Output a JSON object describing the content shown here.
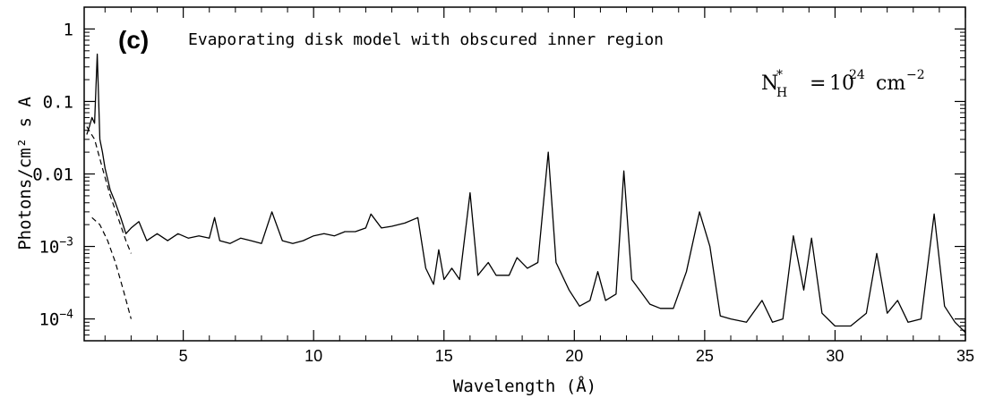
{
  "chart_data": {
    "type": "line",
    "panel_label": "(c)",
    "title": "Evaporating disk model with obscured inner region",
    "annotation": {
      "symbol": "N",
      "superscript": "*",
      "subscript": "H",
      "equals": "=",
      "base": "10",
      "exponent": "24",
      "unit": "cm",
      "unit_exponent": "−2"
    },
    "xlabel": "Wavelength (Å)",
    "ylabel": "Photons/cm² s A",
    "xlim": [
      1.2,
      35
    ],
    "ylim": [
      5e-05,
      2
    ],
    "yscale": "log",
    "grid": false,
    "x_ticks": [
      5,
      10,
      15,
      20,
      25,
      30,
      35
    ],
    "x_tick_labels": [
      "5",
      "10",
      "15",
      "20",
      "25",
      "30",
      "35"
    ],
    "y_ticks": [
      {
        "value": 1,
        "label": "1"
      },
      {
        "value": 0.1,
        "label": "0.1"
      },
      {
        "value": 0.01,
        "label": "0.01"
      },
      {
        "value": 0.001,
        "base": "10",
        "exp": "−3"
      },
      {
        "value": 0.0001,
        "base": "10",
        "exp": "−4"
      }
    ],
    "series": [
      {
        "style": "solid",
        "color": "#000000",
        "x": [
          1.3,
          1.4,
          1.5,
          1.6,
          1.7,
          1.8,
          1.9,
          2.0,
          2.2,
          2.4,
          2.6,
          2.8,
          3.0,
          3.3,
          3.6,
          4.0,
          4.4,
          4.8,
          5.2,
          5.6,
          6.0,
          6.2,
          6.4,
          6.8,
          7.2,
          7.6,
          8.0,
          8.4,
          8.8,
          9.2,
          9.6,
          10.0,
          10.4,
          10.8,
          11.2,
          11.6,
          12.0,
          12.2,
          12.6,
          13.0,
          13.5,
          14.0,
          14.3,
          14.6,
          14.8,
          15.0,
          15.3,
          15.6,
          16.0,
          16.3,
          16.7,
          17.0,
          17.5,
          17.8,
          18.2,
          18.6,
          19.0,
          19.3,
          19.8,
          20.2,
          20.6,
          20.9,
          21.2,
          21.6,
          21.9,
          22.2,
          22.5,
          22.9,
          23.3,
          23.8,
          24.3,
          24.8,
          25.2,
          25.6,
          26.0,
          26.6,
          27.2,
          27.6,
          28.0,
          28.4,
          28.8,
          29.1,
          29.5,
          30.0,
          30.6,
          31.2,
          31.6,
          32.0,
          32.4,
          32.8,
          33.3,
          33.8,
          34.2,
          34.6,
          35.0
        ],
        "y": [
          0.035,
          0.045,
          0.06,
          0.05,
          0.45,
          0.03,
          0.02,
          0.012,
          0.006,
          0.004,
          0.0025,
          0.0015,
          0.0018,
          0.0022,
          0.0012,
          0.0015,
          0.0012,
          0.0015,
          0.0013,
          0.0014,
          0.0013,
          0.0025,
          0.0012,
          0.0011,
          0.0013,
          0.0012,
          0.0011,
          0.003,
          0.0012,
          0.0011,
          0.0012,
          0.0014,
          0.0015,
          0.0014,
          0.0016,
          0.0016,
          0.0018,
          0.0028,
          0.0018,
          0.0019,
          0.0021,
          0.0025,
          0.0005,
          0.0003,
          0.0009,
          0.00035,
          0.0005,
          0.00035,
          0.0055,
          0.0004,
          0.0006,
          0.0004,
          0.0004,
          0.0007,
          0.0005,
          0.0006,
          0.02,
          0.0006,
          0.00025,
          0.00015,
          0.00018,
          0.00045,
          0.00018,
          0.00022,
          0.011,
          0.00035,
          0.00025,
          0.00016,
          0.00014,
          0.00014,
          0.00045,
          0.003,
          0.001,
          0.00011,
          0.0001,
          9e-05,
          0.00018,
          9e-05,
          0.0001,
          0.0014,
          0.00025,
          0.0013,
          0.00012,
          8e-05,
          8e-05,
          0.00012,
          0.0008,
          0.00012,
          0.00018,
          9e-05,
          0.0001,
          0.0028,
          0.00015,
          9e-05,
          6.5e-05
        ]
      },
      {
        "style": "dashed",
        "color": "#000000",
        "x": [
          1.3,
          1.6,
          1.9,
          2.2,
          2.5,
          2.8,
          3.0
        ],
        "y": [
          0.045,
          0.03,
          0.012,
          0.005,
          0.0025,
          0.0012,
          0.0008
        ]
      },
      {
        "style": "dashed",
        "color": "#000000",
        "x": [
          1.5,
          1.8,
          2.1,
          2.4,
          2.7,
          3.0
        ],
        "y": [
          0.0025,
          0.002,
          0.0012,
          0.0006,
          0.00025,
          0.0001
        ]
      }
    ]
  }
}
